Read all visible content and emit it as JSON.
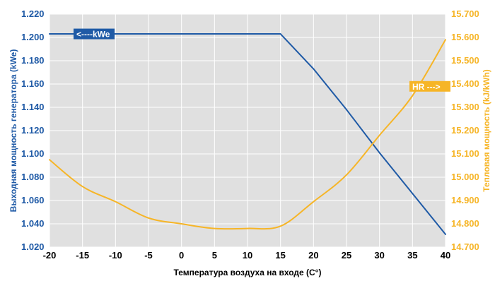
{
  "chart_data": {
    "type": "line",
    "title": "",
    "xlabel": "Температура воздуха на входе (С°)",
    "ylabel_left": "Выходная мощность генератора (kWe)",
    "ylabel_right": "Тепловая мощность (kJ/kWh)",
    "xlim": [
      -20,
      40
    ],
    "ylim_left": [
      1.02,
      1.22
    ],
    "ylim_right": [
      14700,
      15700
    ],
    "x_ticks": [
      "-20",
      "-15",
      "-10",
      "-5",
      "0",
      "5",
      "10",
      "15",
      "20",
      "25",
      "30",
      "35",
      "40"
    ],
    "y_left_ticks": [
      "1.020",
      "1.040",
      "1.060",
      "1.080",
      "1.100",
      "1.120",
      "1.140",
      "1.160",
      "1.180",
      "1.200",
      "1.220"
    ],
    "y_right_ticks": [
      "14.700",
      "14.800",
      "14.900",
      "15.000",
      "15.100",
      "15.200",
      "15.300",
      "15.400",
      "15.500",
      "15.600",
      "15.700"
    ],
    "grid": true,
    "plot_background": "#e0e0e0",
    "series": [
      {
        "name": "kWe",
        "axis": "left",
        "color": "#1f5aa6",
        "x": [
          -20,
          15,
          20,
          25,
          30,
          35,
          40
        ],
        "y": [
          1.203,
          1.203,
          1.173,
          1.138,
          1.101,
          1.066,
          1.031
        ]
      },
      {
        "name": "HR",
        "axis": "right",
        "color": "#f6b527",
        "x": [
          -20,
          -15,
          -10,
          -5,
          0,
          5,
          10,
          15,
          20,
          25,
          30,
          35,
          40
        ],
        "y": [
          15075,
          14960,
          14895,
          14825,
          14800,
          14780,
          14780,
          14790,
          14895,
          15010,
          15180,
          15350,
          15590
        ]
      }
    ],
    "annotations": [
      {
        "text": "<----kWe",
        "series": "kWe"
      },
      {
        "text": "HR --->",
        "series": "HR"
      }
    ],
    "colors": {
      "left_axis": "#1f5aa6",
      "right_axis": "#f6b527",
      "bottom_axis": "#000000",
      "grid": "#ffffff"
    }
  }
}
